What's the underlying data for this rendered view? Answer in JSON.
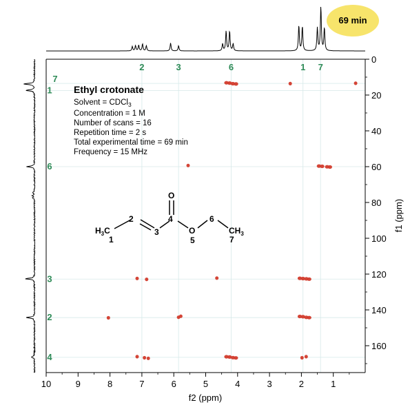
{
  "chart_data": {
    "type": "scatter",
    "plot": "2D NMR correlation spectrum (HSQC)",
    "xlabel": "f2 (ppm)",
    "ylabel": "f1 (ppm)",
    "xlim": [
      10,
      0
    ],
    "ylim": [
      0,
      175
    ],
    "x_ticks": [
      10,
      9,
      8,
      7,
      6,
      5,
      4,
      3,
      2,
      1
    ],
    "y_ticks": [
      0,
      20,
      40,
      60,
      80,
      100,
      120,
      140,
      160
    ],
    "badge": "69 min",
    "info": {
      "title": "Ethyl crotonate",
      "solvent": "Solvent = CDCl",
      "solvent_sub": "3",
      "lines": [
        "Concentration = 1 M",
        "Number of scans = 16",
        "Repetition time = 2 s",
        "Total experimental time = 69 min",
        "Frequency = 15 MHz"
      ]
    },
    "top_labels": [
      {
        "label": "2",
        "ppm": 7.0
      },
      {
        "label": "3",
        "ppm": 5.85
      },
      {
        "label": "6",
        "ppm": 4.2
      },
      {
        "label": "1",
        "ppm": 1.95
      },
      {
        "label": "7",
        "ppm": 1.4
      }
    ],
    "left_labels": [
      {
        "label": "1",
        "ppm": 17.5
      },
      {
        "label": "7",
        "ppm": 13.5
      },
      {
        "label": "6",
        "ppm": 60
      },
      {
        "label": "3",
        "ppm": 122.8
      },
      {
        "label": "2",
        "ppm": 144.3
      },
      {
        "label": "4",
        "ppm": 166.5
      }
    ],
    "h1_peaks": [
      {
        "ppm": 7.3,
        "h": 0.1
      },
      {
        "ppm": 7.2,
        "h": 0.12
      },
      {
        "ppm": 7.1,
        "h": 0.13
      },
      {
        "ppm": 6.98,
        "h": 0.16
      },
      {
        "ppm": 6.86,
        "h": 0.12
      },
      {
        "ppm": 6.1,
        "h": 0.18
      },
      {
        "ppm": 5.85,
        "h": 0.12
      },
      {
        "ppm": 4.47,
        "h": 0.16
      },
      {
        "ppm": 4.36,
        "h": 0.45
      },
      {
        "ppm": 4.25,
        "h": 0.45
      },
      {
        "ppm": 4.14,
        "h": 0.16
      },
      {
        "ppm": 2.08,
        "h": 0.58
      },
      {
        "ppm": 1.97,
        "h": 0.56
      },
      {
        "ppm": 1.5,
        "h": 0.52
      },
      {
        "ppm": 1.39,
        "h": 1.0
      },
      {
        "ppm": 1.28,
        "h": 0.52
      }
    ],
    "c13_peaks": [
      {
        "ppm": 13.8,
        "h": 0.62
      },
      {
        "ppm": 17.4,
        "h": 0.5
      },
      {
        "ppm": 60.0,
        "h": 0.45
      },
      {
        "ppm": 74.5,
        "h": 0.1
      },
      {
        "ppm": 76.2,
        "h": 0.12
      },
      {
        "ppm": 77.5,
        "h": 0.12
      },
      {
        "ppm": 122.6,
        "h": 0.52
      },
      {
        "ppm": 144.3,
        "h": 0.45
      },
      {
        "ppm": 166.4,
        "h": 0.2
      }
    ],
    "series": [
      {
        "name": "cross-peaks",
        "color": "#d23b2c",
        "points": [
          {
            "x": 4.3,
            "y": 13.3,
            "w": 0.2
          },
          {
            "x": 4.1,
            "y": 13.8,
            "w": 0.2
          },
          {
            "x": 2.35,
            "y": 13.7,
            "w": 0.03
          },
          {
            "x": 0.3,
            "y": 13.5,
            "w": 0.05
          },
          {
            "x": 5.55,
            "y": 59.4,
            "w": 0.03
          },
          {
            "x": 1.4,
            "y": 59.8,
            "w": 0.2
          },
          {
            "x": 1.15,
            "y": 60.2,
            "w": 0.18
          },
          {
            "x": 7.15,
            "y": 122.5,
            "w": 0.05
          },
          {
            "x": 6.85,
            "y": 123.0,
            "w": 0.03
          },
          {
            "x": 4.65,
            "y": 122.3,
            "w": 0.03
          },
          {
            "x": 2.0,
            "y": 122.5,
            "w": 0.2
          },
          {
            "x": 1.8,
            "y": 122.8,
            "w": 0.18
          },
          {
            "x": 8.05,
            "y": 144.5,
            "w": 0.02
          },
          {
            "x": 5.85,
            "y": 144.2,
            "w": 0.03
          },
          {
            "x": 5.78,
            "y": 143.6,
            "w": 0.02
          },
          {
            "x": 2.0,
            "y": 143.8,
            "w": 0.2
          },
          {
            "x": 1.8,
            "y": 144.3,
            "w": 0.18
          },
          {
            "x": 7.15,
            "y": 166.2,
            "w": 0.03
          },
          {
            "x": 6.92,
            "y": 166.8,
            "w": 0.03
          },
          {
            "x": 6.8,
            "y": 167.1,
            "w": 0.02
          },
          {
            "x": 4.3,
            "y": 166.3,
            "w": 0.2
          },
          {
            "x": 4.1,
            "y": 166.8,
            "w": 0.18
          },
          {
            "x": 1.98,
            "y": 166.8,
            "w": 0.03
          },
          {
            "x": 1.85,
            "y": 166.2,
            "w": 0.02
          }
        ]
      }
    ],
    "molecule": {
      "atoms": [
        {
          "text": "H",
          "sub": "3",
          "tail": "C"
        },
        {
          "text": "2"
        },
        {
          "text": "3"
        },
        {
          "text": "O"
        },
        {
          "text": "4"
        },
        {
          "text": "O"
        },
        {
          "text": "5"
        },
        {
          "text": "6"
        },
        {
          "text": "CH",
          "sub": "3"
        },
        {
          "text": "1"
        },
        {
          "text": "7"
        }
      ]
    },
    "colors": {
      "badge": "#f7e46b",
      "label": "#2e8b57",
      "grid": "#d6e9e9",
      "peak": "#d23b2c"
    },
    "grid": true
  }
}
